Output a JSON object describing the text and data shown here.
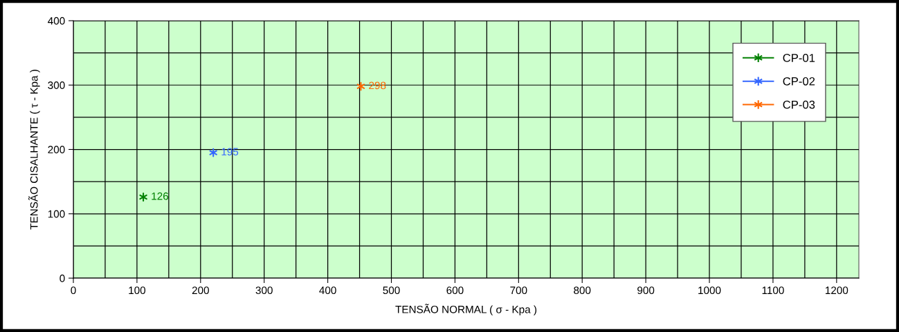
{
  "chart_data": {
    "type": "scatter",
    "xlabel": "TENSÃO NORMAL ( σ - Kpa )",
    "ylabel": "TENSÃO CISALHANTE ( τ - Kpa )",
    "series": [
      {
        "name": "CP-01",
        "color": "#008000",
        "x": [
          110
        ],
        "values": [
          126
        ]
      },
      {
        "name": "CP-02",
        "color": "#3366ff",
        "x": [
          220
        ],
        "values": [
          195
        ]
      },
      {
        "name": "CP-03",
        "color": "#ff6600",
        "x": [
          452
        ],
        "values": [
          298
        ]
      }
    ],
    "xlim": [
      0,
      1235
    ],
    "xticks": [
      0,
      {
        "value": 50,
        "label": null
      },
      100,
      {
        "value": 150,
        "label": null
      },
      200,
      {
        "value": 250,
        "label": null
      },
      300,
      {
        "value": 350,
        "label": null
      },
      400,
      {
        "value": 450,
        "label": null
      },
      500,
      {
        "value": 550,
        "label": null
      },
      600,
      {
        "value": 650,
        "label": null
      },
      700,
      {
        "value": 750,
        "label": null
      },
      800,
      {
        "value": 850,
        "label": null
      },
      900,
      {
        "value": 950,
        "label": null
      },
      1000,
      {
        "value": 1050,
        "label": null
      },
      1100,
      {
        "value": 1150,
        "label": null
      },
      1200
    ],
    "ylim": [
      0,
      400
    ],
    "yticks": [
      0,
      {
        "value": 50,
        "label": null
      },
      100,
      {
        "value": 150,
        "label": null
      },
      200,
      {
        "value": 250,
        "label": null
      },
      300,
      {
        "value": 350,
        "label": null
      },
      400
    ],
    "grid": true,
    "legend": "top right",
    "marker": "cross",
    "line_style": "solid",
    "data_labels": true
  }
}
